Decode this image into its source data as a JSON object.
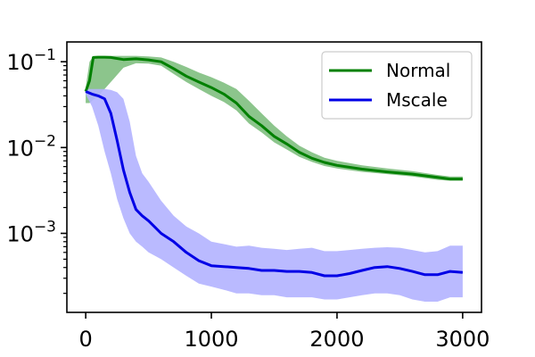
{
  "chart_data": {
    "type": "line",
    "title": "",
    "xlabel": "",
    "ylabel": "",
    "xlim": [
      -150,
      3150
    ],
    "ylim": [
      0.00012,
      0.17
    ],
    "yscale": "log",
    "grid": false,
    "legend_position": "top-right",
    "x_ticks": [
      {
        "value": 0,
        "label": "0"
      },
      {
        "value": 1000,
        "label": "1000"
      },
      {
        "value": 2000,
        "label": "2000"
      },
      {
        "value": 3000,
        "label": "3000"
      }
    ],
    "y_ticks": [
      {
        "value": 0.1,
        "base": "10",
        "exp": "−1"
      },
      {
        "value": 0.01,
        "base": "10",
        "exp": "−2"
      },
      {
        "value": 0.001,
        "base": "10",
        "exp": "−3"
      }
    ],
    "series": [
      {
        "name": "Normal",
        "color": "#008000",
        "band_color": "#7fbf7f",
        "x": [
          0,
          30,
          60,
          100,
          150,
          200,
          300,
          400,
          500,
          600,
          700,
          800,
          900,
          1000,
          1100,
          1200,
          1300,
          1400,
          1500,
          1600,
          1700,
          1800,
          1900,
          2000,
          2200,
          2400,
          2600,
          2800,
          2900,
          3000
        ],
        "y": [
          0.045,
          0.06,
          0.112,
          0.113,
          0.113,
          0.112,
          0.106,
          0.108,
          0.105,
          0.1,
          0.083,
          0.068,
          0.058,
          0.05,
          0.042,
          0.033,
          0.023,
          0.018,
          0.0135,
          0.011,
          0.0088,
          0.0075,
          0.0067,
          0.0062,
          0.0056,
          0.0052,
          0.0049,
          0.0045,
          0.0043,
          0.0043
        ],
        "lower": [
          0.033,
          0.033,
          0.036,
          0.04,
          0.048,
          0.058,
          0.085,
          0.096,
          0.095,
          0.09,
          0.072,
          0.058,
          0.048,
          0.04,
          0.034,
          0.027,
          0.019,
          0.015,
          0.0115,
          0.0095,
          0.0078,
          0.0068,
          0.0061,
          0.0057,
          0.0052,
          0.0049,
          0.0046,
          0.0042,
          0.0041,
          0.0041
        ],
        "upper": [
          0.05,
          0.1,
          0.116,
          0.117,
          0.117,
          0.117,
          0.117,
          0.117,
          0.115,
          0.112,
          0.1,
          0.087,
          0.075,
          0.066,
          0.057,
          0.048,
          0.035,
          0.025,
          0.018,
          0.0135,
          0.0105,
          0.0088,
          0.0076,
          0.007,
          0.0062,
          0.0057,
          0.0053,
          0.0048,
          0.0046,
          0.0046
        ]
      },
      {
        "name": "Mscale",
        "color": "#0000e6",
        "band_color": "#b3b3ff",
        "x": [
          0,
          50,
          100,
          150,
          200,
          250,
          300,
          350,
          400,
          450,
          500,
          600,
          700,
          800,
          900,
          1000,
          1100,
          1200,
          1300,
          1400,
          1500,
          1600,
          1700,
          1800,
          1900,
          2000,
          2100,
          2200,
          2300,
          2400,
          2500,
          2600,
          2700,
          2800,
          2900,
          3000
        ],
        "y": [
          0.045,
          0.042,
          0.04,
          0.037,
          0.025,
          0.012,
          0.0055,
          0.003,
          0.0019,
          0.0016,
          0.0014,
          0.001,
          0.0008,
          0.0006,
          0.00048,
          0.00042,
          0.00041,
          0.0004,
          0.00039,
          0.00037,
          0.00037,
          0.00036,
          0.00036,
          0.00035,
          0.00032,
          0.00032,
          0.00034,
          0.00037,
          0.0004,
          0.00041,
          0.00039,
          0.00036,
          0.00033,
          0.00033,
          0.00036,
          0.00035
        ],
        "lower": [
          0.042,
          0.03,
          0.018,
          0.009,
          0.005,
          0.0025,
          0.0015,
          0.001,
          0.0008,
          0.0007,
          0.0006,
          0.0005,
          0.0004,
          0.00032,
          0.00026,
          0.00024,
          0.00022,
          0.0002,
          0.0002,
          0.00019,
          0.00019,
          0.00018,
          0.00018,
          0.00018,
          0.00017,
          0.00017,
          0.00018,
          0.00019,
          0.0002,
          0.0002,
          0.00019,
          0.00017,
          0.00016,
          0.00016,
          0.00018,
          0.00018
        ],
        "upper": [
          0.048,
          0.048,
          0.048,
          0.048,
          0.047,
          0.044,
          0.037,
          0.02,
          0.008,
          0.005,
          0.004,
          0.0024,
          0.0016,
          0.0012,
          0.001,
          0.0008,
          0.00075,
          0.0007,
          0.00072,
          0.00068,
          0.00066,
          0.00064,
          0.00066,
          0.00068,
          0.00062,
          0.00062,
          0.00064,
          0.00066,
          0.00068,
          0.00069,
          0.00068,
          0.00064,
          0.0006,
          0.00062,
          0.00072,
          0.00072
        ]
      }
    ]
  }
}
